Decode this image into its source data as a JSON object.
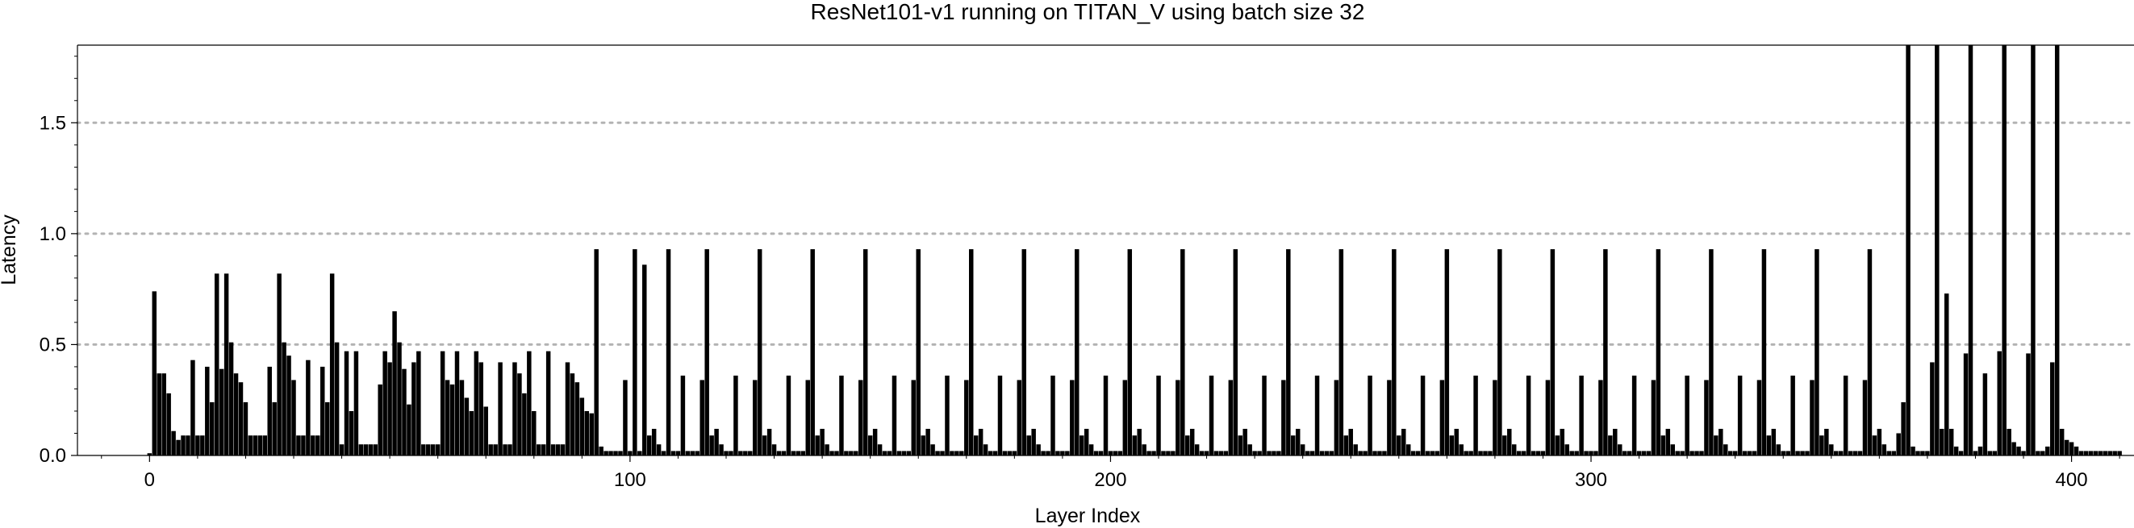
{
  "chart_data": {
    "type": "bar",
    "title": "ResNet101-v1 running on TITAN_V using batch size 32",
    "xlabel": "Layer Index",
    "ylabel": "Latency",
    "xlim": [
      -15,
      413
    ],
    "ylim": [
      0,
      1.85
    ],
    "x_ticks": [
      0,
      100,
      200,
      300,
      400
    ],
    "x_tick_labels": [
      "0",
      "100",
      "200",
      "300",
      "400"
    ],
    "y_ticks": [
      0,
      0.5,
      1.0,
      1.5
    ],
    "y_tick_labels": [
      "0.0",
      "0.5",
      "1.0",
      "1.5"
    ],
    "grid": {
      "horizontal_dotted_at": [
        0.5,
        1.0,
        1.5
      ],
      "vertical": false
    },
    "bar_color": "#000000",
    "grid_color": "#b3b3b3",
    "layer_index": [
      0,
      1,
      2,
      3,
      4,
      5,
      6,
      7,
      8,
      9,
      10,
      11,
      12,
      13,
      14,
      15,
      16,
      17,
      18,
      19,
      20,
      21,
      22,
      23,
      24,
      25,
      26,
      27,
      28,
      29,
      30,
      31,
      32,
      33,
      34,
      35,
      36,
      37,
      38,
      39,
      40,
      41,
      42,
      43,
      44,
      45,
      46,
      47,
      48,
      49,
      50,
      51,
      52,
      53,
      54,
      55,
      56,
      57,
      58,
      59,
      60,
      61,
      62,
      63,
      64,
      65,
      66,
      67,
      68,
      69,
      70,
      71,
      72,
      73,
      74,
      75,
      76,
      77,
      78,
      79,
      80,
      81,
      82,
      83,
      84,
      85,
      86,
      87,
      88,
      89,
      90,
      91,
      92,
      93,
      94,
      95,
      96,
      97,
      98,
      99,
      100,
      101,
      102,
      103,
      104,
      105,
      106,
      107,
      108,
      109,
      110,
      111,
      112,
      113,
      114,
      115,
      116,
      117,
      118,
      119,
      120,
      121,
      122,
      123,
      124,
      125,
      126,
      127,
      128,
      129,
      130,
      131,
      132,
      133,
      134,
      135,
      136,
      137,
      138,
      139,
      140,
      141,
      142,
      143,
      144,
      145,
      146,
      147,
      148,
      149,
      150,
      151,
      152,
      153,
      154,
      155,
      156,
      157,
      158,
      159,
      160,
      161,
      162,
      163,
      164,
      165,
      166,
      167,
      168,
      169,
      170,
      171,
      172,
      173,
      174,
      175,
      176,
      177,
      178,
      179,
      180,
      181,
      182,
      183,
      184,
      185,
      186,
      187,
      188,
      189,
      190,
      191,
      192,
      193,
      194,
      195,
      196,
      197,
      198,
      199,
      200,
      201,
      202,
      203,
      204,
      205,
      206,
      207,
      208,
      209,
      210,
      211,
      212,
      213,
      214,
      215,
      216,
      217,
      218,
      219,
      220,
      221,
      222,
      223,
      224,
      225,
      226,
      227,
      228,
      229,
      230,
      231,
      232,
      233,
      234,
      235,
      236,
      237,
      238,
      239,
      240,
      241,
      242,
      243,
      244,
      245,
      246,
      247,
      248,
      249,
      250,
      251,
      252,
      253,
      254,
      255,
      256,
      257,
      258,
      259,
      260,
      261,
      262,
      263,
      264,
      265,
      266,
      267,
      268,
      269,
      270,
      271,
      272,
      273,
      274,
      275,
      276,
      277,
      278,
      279,
      280,
      281,
      282,
      283,
      284,
      285,
      286,
      287,
      288,
      289,
      290,
      291,
      292,
      293,
      294,
      295,
      296,
      297,
      298,
      299,
      300,
      301,
      302,
      303,
      304,
      305,
      306,
      307,
      308,
      309,
      310,
      311,
      312,
      313,
      314,
      315,
      316,
      317,
      318,
      319,
      320,
      321,
      322,
      323,
      324,
      325,
      326,
      327,
      328,
      329,
      330,
      331,
      332,
      333,
      334,
      335,
      336,
      337,
      338,
      339,
      340,
      341,
      342,
      343,
      344,
      345,
      346,
      347,
      348,
      349,
      350,
      351,
      352,
      353,
      354,
      355,
      356,
      357,
      358,
      359,
      360,
      361,
      362,
      363,
      364,
      365,
      366,
      367,
      368,
      369,
      370,
      371,
      372,
      373,
      374,
      375,
      376,
      377,
      378,
      379,
      380,
      381,
      382,
      383,
      384,
      385,
      386,
      387,
      388,
      389,
      390,
      391,
      392,
      393,
      394,
      395,
      396,
      397,
      398,
      399,
      400,
      401,
      402,
      403,
      404,
      405,
      406,
      407,
      408,
      409,
      410
    ],
    "latency": [
      0.01,
      0.74,
      0.37,
      0.37,
      0.28,
      0.11,
      0.07,
      0.09,
      0.09,
      0.43,
      0.09,
      0.09,
      0.4,
      0.24,
      0.82,
      0.39,
      0.82,
      0.51,
      0.37,
      0.33,
      0.24,
      0.09,
      0.09,
      0.09,
      0.09,
      0.4,
      0.24,
      0.82,
      0.51,
      0.45,
      0.34,
      0.09,
      0.09,
      0.43,
      0.09,
      0.09,
      0.4,
      0.24,
      0.82,
      0.51,
      0.05,
      0.47,
      0.2,
      0.47,
      0.05,
      0.05,
      0.05,
      0.05,
      0.32,
      0.47,
      0.42,
      0.65,
      0.51,
      0.39,
      0.23,
      0.42,
      0.47,
      0.05,
      0.05,
      0.05,
      0.05,
      0.47,
      0.34,
      0.32,
      0.47,
      0.34,
      0.26,
      0.2,
      0.47,
      0.42,
      0.22,
      0.05,
      0.05,
      0.42,
      0.05,
      0.05,
      0.42,
      0.37,
      0.28,
      0.47,
      0.2,
      0.05,
      0.05,
      0.47,
      0.05,
      0.05,
      0.05,
      0.42,
      0.37,
      0.33,
      0.26,
      0.2,
      0.19,
      0.93,
      0.04,
      0.02,
      0.02,
      0.02,
      0.02,
      0.34,
      0.02,
      0.93,
      0.02,
      0.86,
      0.09,
      0.12,
      0.05,
      0.02,
      0.93,
      0.02,
      0.02,
      0.36,
      0.02,
      0.02,
      0.02,
      0.34,
      0.93,
      0.09,
      0.12,
      0.05,
      0.02,
      0.02,
      0.36,
      0.02,
      0.02,
      0.02,
      0.34,
      0.93,
      0.09,
      0.12,
      0.05,
      0.02,
      0.02,
      0.36,
      0.02,
      0.02,
      0.02,
      0.34,
      0.93,
      0.09,
      0.12,
      0.05,
      0.02,
      0.02,
      0.36,
      0.02,
      0.02,
      0.02,
      0.34,
      0.93,
      0.09,
      0.12,
      0.05,
      0.02,
      0.02,
      0.36,
      0.02,
      0.02,
      0.02,
      0.34,
      0.93,
      0.09,
      0.12,
      0.05,
      0.02,
      0.02,
      0.36,
      0.02,
      0.02,
      0.02,
      0.34,
      0.93,
      0.09,
      0.12,
      0.05,
      0.02,
      0.02,
      0.36,
      0.02,
      0.02,
      0.02,
      0.34,
      0.93,
      0.09,
      0.12,
      0.05,
      0.02,
      0.02,
      0.36,
      0.02,
      0.02,
      0.02,
      0.34,
      0.93,
      0.09,
      0.12,
      0.05,
      0.02,
      0.02,
      0.36,
      0.02,
      0.02,
      0.02,
      0.34,
      0.93,
      0.09,
      0.12,
      0.05,
      0.02,
      0.02,
      0.36,
      0.02,
      0.02,
      0.02,
      0.34,
      0.93,
      0.09,
      0.12,
      0.05,
      0.02,
      0.02,
      0.36,
      0.02,
      0.02,
      0.02,
      0.34,
      0.93,
      0.09,
      0.12,
      0.05,
      0.02,
      0.02,
      0.36,
      0.02,
      0.02,
      0.02,
      0.34,
      0.93,
      0.09,
      0.12,
      0.05,
      0.02,
      0.02,
      0.36,
      0.02,
      0.02,
      0.02,
      0.34,
      0.93,
      0.09,
      0.12,
      0.05,
      0.02,
      0.02,
      0.36,
      0.02,
      0.02,
      0.02,
      0.34,
      0.93,
      0.09,
      0.12,
      0.05,
      0.02,
      0.02,
      0.36,
      0.02,
      0.02,
      0.02,
      0.34,
      0.93,
      0.09,
      0.12,
      0.05,
      0.02,
      0.02,
      0.36,
      0.02,
      0.02,
      0.02,
      0.34,
      0.93,
      0.09,
      0.12,
      0.05,
      0.02,
      0.02,
      0.36,
      0.02,
      0.02,
      0.02,
      0.34,
      0.93,
      0.09,
      0.12,
      0.05,
      0.02,
      0.02,
      0.36,
      0.02,
      0.02,
      0.02,
      0.34,
      0.93,
      0.09,
      0.12,
      0.05,
      0.02,
      0.02,
      0.36,
      0.02,
      0.02,
      0.02,
      0.34,
      0.93,
      0.09,
      0.12,
      0.05,
      0.02,
      0.02,
      0.36,
      0.02,
      0.02,
      0.02,
      0.34,
      0.93,
      0.09,
      0.12,
      0.05,
      0.02,
      0.02,
      0.36,
      0.02,
      0.02,
      0.02,
      0.34,
      0.93,
      0.09,
      0.12,
      0.05,
      0.02,
      0.02,
      0.36,
      0.02,
      0.02,
      0.02,
      0.34,
      0.93,
      0.09,
      0.12,
      0.05,
      0.02,
      0.02,
      0.36,
      0.02,
      0.02,
      0.02,
      0.34,
      0.93,
      0.09,
      0.12,
      0.05,
      0.02,
      0.02,
      0.1,
      0.24,
      1.85,
      0.04,
      0.02,
      0.02,
      0.02,
      0.42,
      1.85,
      0.12,
      0.73,
      0.12,
      0.04,
      0.02,
      0.46,
      1.85,
      0.02,
      0.04,
      0.37,
      0.02,
      0.02,
      0.47,
      1.85,
      0.12,
      0.06,
      0.04,
      0.02,
      0.46,
      1.85,
      0.02,
      0.02,
      0.04,
      0.42,
      1.85,
      0.12,
      0.07,
      0.06,
      0.04,
      0.02,
      0.02,
      0.02,
      0.02,
      0.02,
      0.02,
      0.02,
      0.02,
      0.02
    ]
  }
}
